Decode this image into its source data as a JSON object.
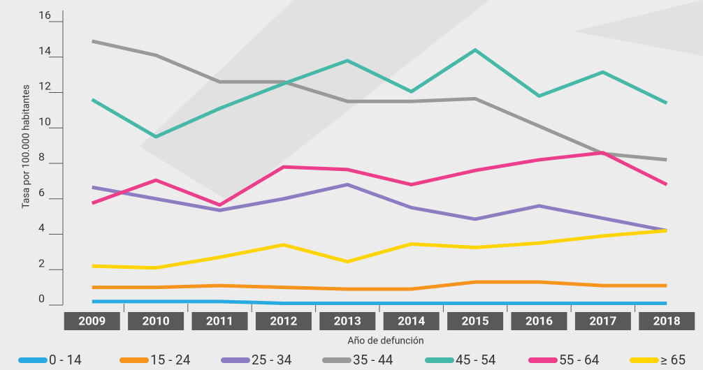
{
  "chart_data": {
    "type": "line",
    "x_label": "Año de defunción",
    "y_label": "Tasa por 100.000 habitantes",
    "categories": [
      "2009",
      "2010",
      "2011",
      "2012",
      "2013",
      "2014",
      "2015",
      "2016",
      "2017",
      "2018"
    ],
    "ylim": [
      0,
      16
    ],
    "yticks": [
      0,
      2,
      4,
      6,
      8,
      10,
      12,
      14,
      16
    ],
    "grid": false,
    "legend": "bottom",
    "series": [
      {
        "name": "0 - 14",
        "color": "#29abe2",
        "values": [
          0.2,
          0.2,
          0.2,
          0.1,
          0.1,
          0.1,
          0.1,
          0.1,
          0.1,
          0.1
        ]
      },
      {
        "name": "15 - 24",
        "color": "#f7941d",
        "values": [
          1.0,
          1.0,
          1.1,
          1.0,
          0.9,
          0.9,
          1.3,
          1.3,
          1.1,
          1.1
        ]
      },
      {
        "name": "25 - 34",
        "color": "#8e7cc3",
        "values": [
          6.65,
          6.0,
          5.35,
          6.0,
          6.8,
          5.5,
          4.85,
          5.6,
          4.9,
          4.2
        ]
      },
      {
        "name": "35 - 44",
        "color": "#999999",
        "values": [
          14.9,
          14.1,
          12.6,
          12.6,
          11.5,
          11.5,
          11.65,
          10.1,
          8.55,
          8.2
        ]
      },
      {
        "name": "45 - 54",
        "color": "#45b8a8",
        "values": [
          11.6,
          9.5,
          11.1,
          12.5,
          13.8,
          12.05,
          14.4,
          11.8,
          13.15,
          11.4
        ]
      },
      {
        "name": "55 - 64",
        "color": "#ec3e8a",
        "values": [
          5.75,
          7.05,
          5.65,
          7.8,
          7.65,
          6.8,
          7.6,
          8.2,
          8.6,
          6.8
        ]
      },
      {
        "name": "≥ 65",
        "color": "#ffd400",
        "values": [
          2.2,
          2.1,
          2.7,
          3.4,
          2.45,
          3.45,
          3.25,
          3.5,
          3.9,
          4.2
        ]
      }
    ]
  }
}
